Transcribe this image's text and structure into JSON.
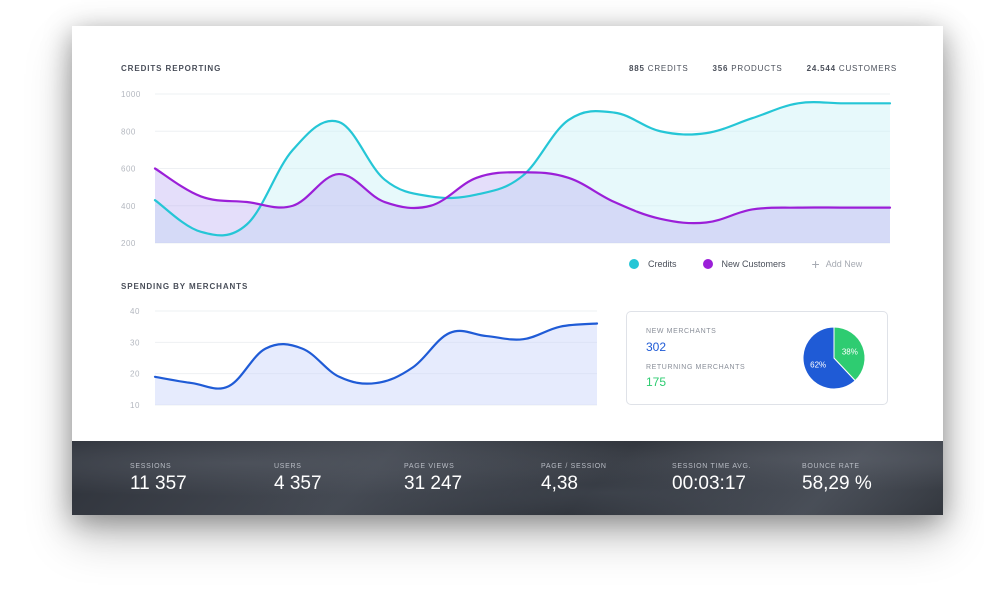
{
  "credits_section": {
    "title": "CREDITS REPORTING",
    "stats": [
      {
        "value": "885",
        "label": "CREDITS"
      },
      {
        "value": "356",
        "label": "PRODUCTS"
      },
      {
        "value": "24.544",
        "label": "CUSTOMERS"
      }
    ],
    "add_new_label": "Add New"
  },
  "spending_section": {
    "title": "SPENDING BY MERCHANTS"
  },
  "merchants": {
    "new_label": "NEW MERCHANTS",
    "new_value": "302",
    "returning_label": "RETURNING MERCHANTS",
    "returning_value": "175"
  },
  "footer": {
    "stats": [
      {
        "label": "SESSIONS",
        "value": "11 357"
      },
      {
        "label": "USERS",
        "value": "4 357"
      },
      {
        "label": "PAGE VIEWS",
        "value": "31 247"
      },
      {
        "label": "PAGE / SESSION",
        "value": "4,38"
      },
      {
        "label": "SESSION TIME AVG.",
        "value": "00:03:17"
      },
      {
        "label": "BOUNCE RATE",
        "value": "58,29 %"
      }
    ]
  },
  "colors": {
    "credits": "#25c6d6",
    "new_customers": "#9b1fd8",
    "spending": "#1f5bd6",
    "pie_new": "#1f5bd6",
    "pie_returning": "#2ecc71",
    "returning_value_color": "#2ecc71",
    "new_value_color": "#1f5bd6"
  },
  "chart_data": [
    {
      "type": "area",
      "title": "CREDITS REPORTING",
      "x": [
        0,
        1,
        2,
        3,
        4,
        5,
        6,
        7,
        8,
        9,
        10,
        11,
        12,
        13,
        14,
        15,
        16
      ],
      "ylim": [
        200,
        1000
      ],
      "yticks": [
        200,
        400,
        600,
        800,
        1000
      ],
      "grid": true,
      "legend_position": "bottom-right",
      "series": [
        {
          "name": "Credits",
          "values": [
            430,
            260,
            300,
            700,
            850,
            540,
            450,
            460,
            560,
            860,
            900,
            800,
            790,
            870,
            950,
            950,
            950
          ]
        },
        {
          "name": "New Customers",
          "values": [
            600,
            450,
            420,
            400,
            570,
            420,
            400,
            550,
            580,
            550,
            420,
            330,
            310,
            380,
            390,
            390,
            390
          ]
        }
      ]
    },
    {
      "type": "area",
      "title": "SPENDING BY MERCHANTS",
      "x": [
        0,
        1,
        2,
        3,
        4,
        5,
        6,
        7,
        8,
        9,
        10,
        11,
        12
      ],
      "ylim": [
        10,
        40
      ],
      "yticks": [
        10,
        20,
        30,
        40
      ],
      "grid": true,
      "series": [
        {
          "name": "",
          "values": [
            19,
            17,
            16,
            28,
            28,
            19,
            17,
            22,
            33,
            32,
            31,
            35,
            36
          ]
        }
      ]
    },
    {
      "type": "pie",
      "labels": [
        "NEW MERCHANTS",
        "RETURNING MERCHANTS"
      ],
      "values": [
        62,
        38
      ],
      "value_labels": [
        "62%",
        "38%"
      ]
    }
  ]
}
